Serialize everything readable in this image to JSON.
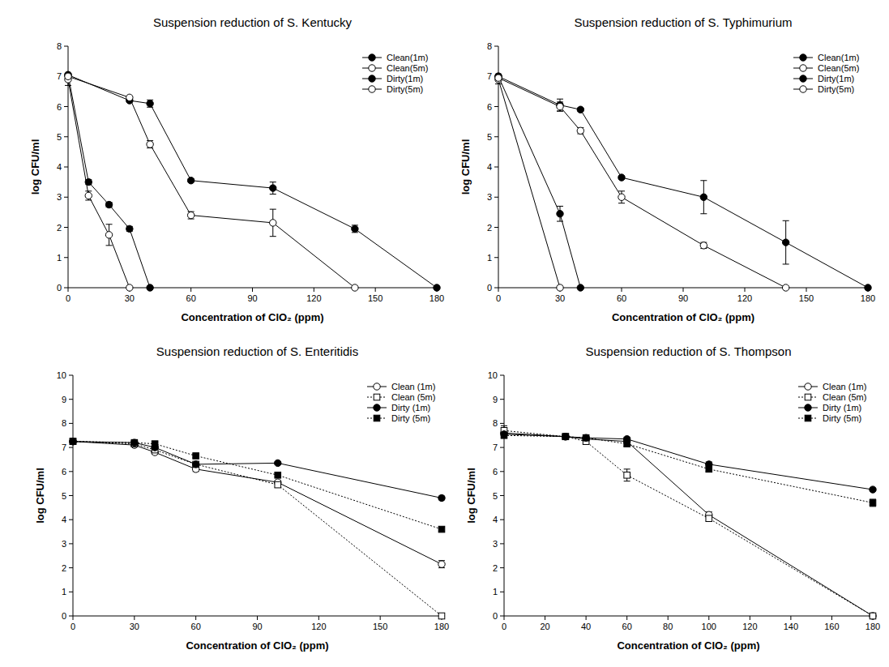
{
  "chart_data": [
    {
      "type": "line",
      "title": "Suspension reduction of S. Kentucky",
      "x_label": "Concentration of ClO₂ (ppm)",
      "y_label": "log CFU/ml",
      "xlim": [
        0,
        180
      ],
      "xticks": [
        0,
        30,
        60,
        90,
        120,
        150,
        180
      ],
      "ylim": [
        0,
        8
      ],
      "yticks": [
        0,
        1,
        2,
        3,
        4,
        5,
        6,
        7,
        8
      ],
      "legend": "upper right",
      "series": [
        {
          "name": "Clean(1m)",
          "color": "#000000",
          "marker": "circle",
          "line_style": "solid",
          "x": [
            0,
            10,
            20,
            30,
            40
          ],
          "values": [
            7.05,
            3.5,
            2.75,
            1.95,
            0
          ],
          "errors": [
            0.05,
            0.08,
            0.08,
            0.08,
            0
          ]
        },
        {
          "name": "Clean(5m)",
          "color": "#000000",
          "marker": "circle-open",
          "line_style": "solid",
          "x": [
            0,
            10,
            20,
            30
          ],
          "values": [
            6.9,
            3.05,
            1.75,
            0
          ],
          "errors": [
            0.2,
            0.15,
            0.35,
            0
          ]
        },
        {
          "name": "Dirty(1m)",
          "color": "#000000",
          "marker": "circle",
          "line_style": "solid",
          "x": [
            0,
            30,
            40,
            60,
            100,
            140,
            180
          ],
          "values": [
            7.05,
            6.2,
            6.1,
            3.55,
            3.3,
            1.95,
            0
          ],
          "errors": [
            0.05,
            0.05,
            0.12,
            0.05,
            0.2,
            0.12,
            0
          ]
        },
        {
          "name": "Dirty(5m)",
          "color": "#000000",
          "marker": "circle-open",
          "line_style": "solid",
          "x": [
            0,
            30,
            40,
            60,
            100,
            140
          ],
          "values": [
            7.0,
            6.3,
            4.75,
            2.4,
            2.15,
            0
          ],
          "errors": [
            0.1,
            0.05,
            0.12,
            0.12,
            0.45,
            0
          ]
        }
      ]
    },
    {
      "type": "line",
      "title": "Suspension reduction of S. Typhimurium",
      "x_label": "Concentration of ClO₂ (ppm)",
      "y_label": "log CFU/ml",
      "xlim": [
        0,
        180
      ],
      "xticks": [
        0,
        30,
        60,
        90,
        120,
        150,
        180
      ],
      "ylim": [
        0,
        8
      ],
      "yticks": [
        0,
        1,
        2,
        3,
        4,
        5,
        6,
        7,
        8
      ],
      "legend": "upper right",
      "series": [
        {
          "name": "Clean(1m)",
          "color": "#000000",
          "marker": "circle",
          "line_style": "solid",
          "x": [
            0,
            30,
            40
          ],
          "values": [
            7.0,
            2.45,
            0
          ],
          "errors": [
            0.08,
            0.25,
            0
          ]
        },
        {
          "name": "Clean(5m)",
          "color": "#000000",
          "marker": "circle-open",
          "line_style": "solid",
          "x": [
            0,
            30
          ],
          "values": [
            6.9,
            0
          ],
          "errors": [
            0.15,
            0
          ]
        },
        {
          "name": "Dirty(1m)",
          "color": "#000000",
          "marker": "circle",
          "line_style": "solid",
          "x": [
            0,
            30,
            40,
            60,
            100,
            140,
            180
          ],
          "values": [
            7.0,
            6.05,
            5.9,
            3.65,
            3.0,
            1.5,
            0
          ],
          "errors": [
            0.05,
            0.2,
            0.05,
            0.05,
            0.55,
            0.72,
            0
          ]
        },
        {
          "name": "Dirty(5m)",
          "color": "#000000",
          "marker": "circle-open",
          "line_style": "solid",
          "x": [
            0,
            30,
            40,
            60,
            100,
            140
          ],
          "values": [
            6.95,
            6.0,
            5.2,
            3.0,
            1.4,
            0
          ],
          "errors": [
            0.1,
            0.15,
            0.1,
            0.2,
            0.1,
            0
          ]
        }
      ]
    },
    {
      "type": "line",
      "title": "Suspension reduction of S. Enteritidis",
      "x_label": "Concentration of ClO₂ (ppm)",
      "y_label": "log CFU/ml",
      "xlim": [
        0,
        180
      ],
      "xticks": [
        0,
        30,
        60,
        90,
        120,
        150,
        180
      ],
      "ylim": [
        0,
        10
      ],
      "yticks": [
        0,
        1,
        2,
        3,
        4,
        5,
        6,
        7,
        8,
        9,
        10
      ],
      "legend": "upper right",
      "series": [
        {
          "name": "Clean (1m)",
          "color": "#000000",
          "marker": "circle-open",
          "line_style": "solid",
          "x": [
            0,
            30,
            40,
            60,
            100,
            180
          ],
          "values": [
            7.25,
            7.1,
            6.8,
            6.1,
            5.55,
            2.15
          ],
          "errors": [
            0.05,
            0.08,
            0.08,
            0.1,
            0.08,
            0.15
          ]
        },
        {
          "name": "Clean (5m)",
          "color": "#000000",
          "marker": "square-open",
          "line_style": "dotted",
          "x": [
            0,
            30,
            40,
            60,
            100,
            180
          ],
          "values": [
            7.25,
            7.15,
            6.9,
            6.3,
            5.45,
            0
          ],
          "errors": [
            0.05,
            0.05,
            0.08,
            0.08,
            0.1,
            0
          ]
        },
        {
          "name": "Dirty (1m)",
          "color": "#000000",
          "marker": "circle",
          "line_style": "solid",
          "x": [
            0,
            30,
            40,
            60,
            100,
            180
          ],
          "values": [
            7.25,
            7.2,
            7.0,
            6.3,
            6.35,
            4.9
          ],
          "errors": [
            0.05,
            0.05,
            0.05,
            0.1,
            0.05,
            0.08
          ]
        },
        {
          "name": "Dirty (5m)",
          "color": "#000000",
          "marker": "square",
          "line_style": "dotted",
          "x": [
            0,
            30,
            40,
            60,
            100,
            180
          ],
          "values": [
            7.25,
            7.2,
            7.15,
            6.65,
            5.85,
            3.6
          ],
          "errors": [
            0.05,
            0.05,
            0.08,
            0.08,
            0.08,
            0.08
          ]
        }
      ]
    },
    {
      "type": "line",
      "title": "Suspension reduction of S. Thompson",
      "x_label": "Concentration of ClO₂ (ppm)",
      "y_label": "log CFU/ml",
      "xlim": [
        0,
        180
      ],
      "xticks": [
        0,
        20,
        40,
        60,
        80,
        100,
        120,
        140,
        160,
        180
      ],
      "ylim": [
        0,
        10
      ],
      "yticks": [
        0,
        1,
        2,
        3,
        4,
        5,
        6,
        7,
        8,
        9,
        10
      ],
      "legend": "upper right",
      "series": [
        {
          "name": "Clean (1m)",
          "color": "#000000",
          "marker": "circle-open",
          "line_style": "solid",
          "x": [
            0,
            30,
            40,
            60,
            100,
            180
          ],
          "values": [
            7.6,
            7.45,
            7.35,
            7.25,
            4.2,
            0
          ],
          "errors": [
            0.1,
            0.05,
            0.05,
            0.08,
            0.12,
            0
          ]
        },
        {
          "name": "Clean (5m)",
          "color": "#000000",
          "marker": "square-open",
          "line_style": "dotted",
          "x": [
            0,
            30,
            40,
            60,
            100,
            180
          ],
          "values": [
            7.7,
            7.45,
            7.25,
            5.85,
            4.05,
            0
          ],
          "errors": [
            0.2,
            0.05,
            0.1,
            0.25,
            0.1,
            0
          ]
        },
        {
          "name": "Dirty (1m)",
          "color": "#000000",
          "marker": "circle",
          "line_style": "solid",
          "x": [
            0,
            30,
            40,
            60,
            100,
            180
          ],
          "values": [
            7.55,
            7.45,
            7.4,
            7.35,
            6.3,
            5.25
          ],
          "errors": [
            0.1,
            0.05,
            0.05,
            0.08,
            0.1,
            0.05
          ]
        },
        {
          "name": "Dirty (5m)",
          "color": "#000000",
          "marker": "square",
          "line_style": "dotted",
          "x": [
            0,
            30,
            40,
            60,
            100,
            180
          ],
          "values": [
            7.5,
            7.45,
            7.4,
            7.15,
            6.1,
            4.7
          ],
          "errors": [
            0.1,
            0.05,
            0.05,
            0.1,
            0.1,
            0.15
          ]
        }
      ]
    }
  ]
}
